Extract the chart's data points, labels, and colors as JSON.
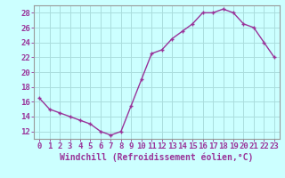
{
  "x": [
    0,
    1,
    2,
    3,
    4,
    5,
    6,
    7,
    8,
    9,
    10,
    11,
    12,
    13,
    14,
    15,
    16,
    17,
    18,
    19,
    20,
    21,
    22,
    23
  ],
  "y": [
    16.5,
    15.0,
    14.5,
    14.0,
    13.5,
    13.0,
    12.0,
    11.5,
    12.0,
    15.5,
    19.0,
    22.5,
    23.0,
    24.5,
    25.5,
    26.5,
    28.0,
    28.0,
    28.5,
    28.0,
    26.5,
    26.0,
    24.0,
    22.0
  ],
  "line_color": "#993399",
  "marker": "+",
  "marker_size": 3,
  "marker_lw": 1.0,
  "bg_color": "#ccffff",
  "grid_color": "#aadddd",
  "spine_color": "#999999",
  "xlabel": "Windchill (Refroidissement éolien,°C)",
  "xlabel_fontsize": 7,
  "tick_fontsize": 6.5,
  "ylim": [
    11,
    29
  ],
  "yticks": [
    12,
    14,
    16,
    18,
    20,
    22,
    24,
    26,
    28
  ],
  "xlim": [
    -0.5,
    23.5
  ],
  "xticks": [
    0,
    1,
    2,
    3,
    4,
    5,
    6,
    7,
    8,
    9,
    10,
    11,
    12,
    13,
    14,
    15,
    16,
    17,
    18,
    19,
    20,
    21,
    22,
    23
  ],
  "line_width": 1.0
}
